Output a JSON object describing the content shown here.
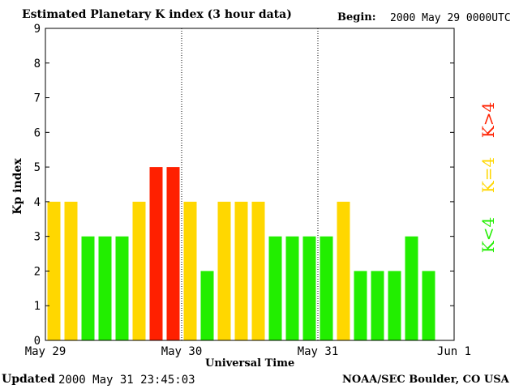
{
  "header": {
    "title": "Estimated Planetary K index (3 hour data)",
    "begin_label": "Begin:",
    "begin_value": "2000 May 29 0000UTC"
  },
  "footer": {
    "updated_label": "Updated",
    "updated_value": "2000 May 31 23:45:03",
    "credit": "NOAA/SEC Boulder, CO USA"
  },
  "legend": {
    "high": "K>4",
    "equal": "K=4",
    "low": "K<4"
  },
  "colors": {
    "low": "#22ee00",
    "equal": "#ffd700",
    "high": "#ff2000"
  },
  "chart_data": {
    "type": "bar",
    "ylabel": "Kp index",
    "xlabel": "Universal Time",
    "ylim": [
      0,
      9
    ],
    "yticks": [
      0,
      1,
      2,
      3,
      4,
      5,
      6,
      7,
      8,
      9
    ],
    "xlim": [
      0,
      72
    ],
    "xticks": [
      {
        "hour": 0,
        "label": "May 29"
      },
      {
        "hour": 24,
        "label": "May 30"
      },
      {
        "hour": 48,
        "label": "May 31"
      },
      {
        "hour": 72,
        "label": "Jun 1"
      }
    ],
    "day_separators": [
      24,
      48
    ],
    "bar_hours": 3,
    "values": [
      4,
      4,
      3,
      3,
      3,
      4,
      5,
      5,
      4,
      2,
      4,
      4,
      4,
      3,
      3,
      3,
      3,
      4,
      2,
      2,
      2,
      3,
      2
    ]
  }
}
